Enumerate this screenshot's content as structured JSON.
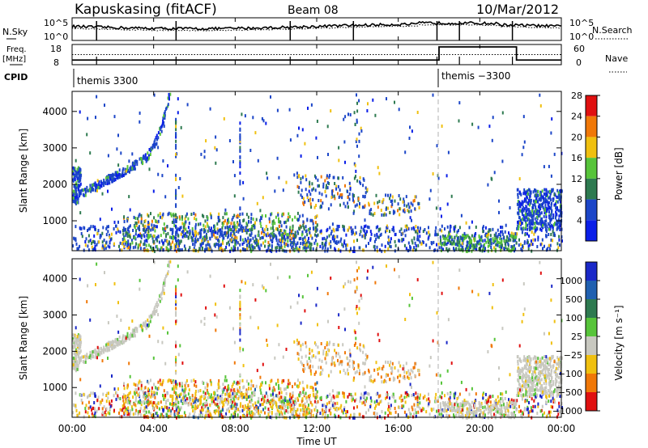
{
  "header": {
    "station": "Kapuskasing (fitACF)",
    "beam": "Beam 08",
    "date": "10/Mar/2012"
  },
  "labels": {
    "nsky": "N.Sky",
    "nsearch": "N.Search",
    "freq_top": "Freq.",
    "freq_unit": "[MHz]",
    "nave": "Nave",
    "cpid": "CPID",
    "time_axis": "Time UT"
  },
  "cpid_segments": [
    {
      "label": "themis 3300",
      "start_h": 0,
      "end_h": 18
    },
    {
      "label": "themis −3300",
      "start_h": 18,
      "end_h": 24
    }
  ],
  "x_ticks": [
    "00:00",
    "04:00",
    "08:00",
    "12:00",
    "16:00",
    "20:00",
    "00:00"
  ],
  "noise_panel": {
    "left_ticks": [
      "10^5",
      "10^0"
    ],
    "right_ticks": [
      "10^5",
      "10^0"
    ]
  },
  "freq_panel": {
    "left_ticks": [
      "18",
      "8"
    ],
    "right_ticks": [
      "60",
      "0"
    ],
    "freq_mhz": [
      {
        "start_h": 0,
        "end_h": 18,
        "value": 10.3
      },
      {
        "start_h": 18,
        "end_h": 21.8,
        "value": 16.8
      },
      {
        "start_h": 21.8,
        "end_h": 24,
        "value": 10.3
      }
    ],
    "nave_level": 30
  },
  "chart_data": [
    {
      "type": "heatmap",
      "name": "power",
      "ylabel": "Slant Range [km]",
      "xlabel": "Time UT",
      "xlim_h": [
        0,
        24
      ],
      "ylim_km": [
        180,
        4550
      ],
      "y_ticks": [
        1000,
        2000,
        3000,
        4000
      ],
      "colorbar_label": "Power [dB]",
      "colorbar_ticks": [
        "4",
        "8",
        "12",
        "16",
        "20",
        "24",
        "28"
      ],
      "colorbar_colors": [
        "#0a1ee8",
        "#1c46c8",
        "#2e7a50",
        "#57c43a",
        "#f0c010",
        "#f07808",
        "#e01010"
      ],
      "colorbar_range": [
        0,
        30
      ]
    },
    {
      "type": "heatmap",
      "name": "velocity",
      "ylabel": "Slant Range [km]",
      "xlabel": "Time UT",
      "xlim_h": [
        0,
        24
      ],
      "ylim_km": [
        180,
        4550
      ],
      "y_ticks": [
        1000,
        2000,
        3000,
        4000
      ],
      "colorbar_label": "Velocity [m s⁻¹]",
      "colorbar_ticks": [
        "1000",
        "500",
        "100",
        "25",
        "−25",
        "−100",
        "−500",
        "−1000"
      ],
      "colorbar_colors": [
        "#1a28c8",
        "#2060b0",
        "#2e7a50",
        "#57c43a",
        "#c8c8c0",
        "#f0c010",
        "#f07808",
        "#e01010"
      ]
    }
  ]
}
